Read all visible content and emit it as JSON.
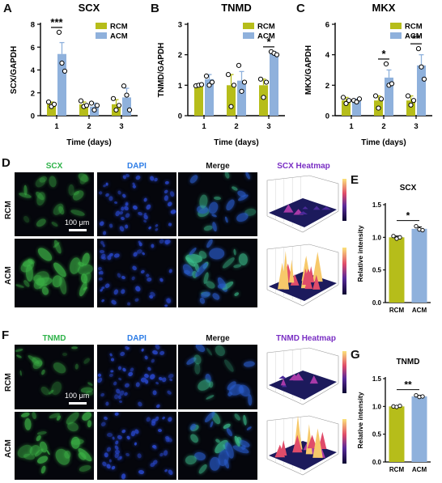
{
  "panels": {
    "A": "A",
    "B": "B",
    "C": "C",
    "D": "D",
    "E": "E",
    "F": "F",
    "G": "G"
  },
  "colors": {
    "RCM": "#b6bd1a",
    "ACM": "#8fb1dc"
  },
  "chart_data": [
    {
      "id": "scx_bar",
      "type": "bar",
      "title": "SCX",
      "ylabel": "SCX/GAPDH",
      "xlabel": "Time (days)",
      "categories": [
        "1",
        "2",
        "3"
      ],
      "ylim": [
        0,
        8
      ],
      "yticks": [
        "0",
        "2",
        "4",
        "6",
        "8"
      ],
      "legend": [
        "RCM",
        "ACM"
      ],
      "series": [
        {
          "name": "RCM",
          "values": [
            1.0,
            1.0,
            1.0
          ],
          "errors": [
            0.2,
            0.2,
            0.4
          ],
          "points": [
            [
              1.2,
              0.8,
              1.0
            ],
            [
              1.3,
              0.8,
              0.9
            ],
            [
              1.5,
              0.5,
              0.9
            ]
          ]
        },
        {
          "name": "ACM",
          "values": [
            5.4,
            0.8,
            1.6
          ],
          "errors": [
            1.0,
            0.3,
            0.8
          ],
          "points": [
            [
              7.3,
              4.6,
              3.9
            ],
            [
              1.1,
              0.5,
              0.9
            ],
            [
              2.6,
              1.8,
              0.5
            ]
          ]
        }
      ],
      "significance": [
        {
          "category": 0,
          "label": "***"
        }
      ]
    },
    {
      "id": "tnmd_bar",
      "type": "bar",
      "title": "TNMD",
      "ylabel": "TNMD/GAPDH",
      "xlabel": "Time (days)",
      "categories": [
        "1",
        "2",
        "3"
      ],
      "ylim": [
        0,
        3
      ],
      "yticks": [
        "0",
        "1",
        "2",
        "3"
      ],
      "legend": [
        "RCM",
        "ACM"
      ],
      "series": [
        {
          "name": "RCM",
          "values": [
            1.0,
            1.0,
            1.0
          ],
          "errors": [
            0.02,
            0.35,
            0.2
          ],
          "points": [
            [
              0.98,
              1.0,
              1.02
            ],
            [
              1.35,
              0.3,
              1.0
            ],
            [
              1.2,
              0.6,
              1.1
            ]
          ]
        },
        {
          "name": "ACM",
          "values": [
            1.2,
            1.15,
            2.05
          ],
          "errors": [
            0.15,
            0.3,
            0.05
          ],
          "points": [
            [
              1.3,
              1.0,
              1.1
            ],
            [
              1.65,
              0.8,
              1.1
            ],
            [
              2.1,
              2.05,
              2.0
            ]
          ]
        }
      ],
      "significance": [
        {
          "category": 2,
          "label": "*"
        }
      ]
    },
    {
      "id": "mkx_bar",
      "type": "bar",
      "title": "MKX",
      "ylabel": "MKX/GAPDH",
      "xlabel": "Time (days)",
      "categories": [
        "1",
        "2",
        "3"
      ],
      "ylim": [
        0,
        6
      ],
      "yticks": [
        "0",
        "2",
        "4",
        "6"
      ],
      "legend": [
        "RCM",
        "ACM"
      ],
      "series": [
        {
          "name": "RCM",
          "values": [
            1.0,
            1.0,
            1.0
          ],
          "errors": [
            0.2,
            0.3,
            0.3
          ],
          "points": [
            [
              1.2,
              0.8,
              1.0
            ],
            [
              1.3,
              0.5,
              1.1
            ],
            [
              1.3,
              0.7,
              1.0
            ]
          ]
        },
        {
          "name": "ACM",
          "values": [
            1.0,
            2.5,
            3.3
          ],
          "errors": [
            0.1,
            0.5,
            0.7
          ],
          "points": [
            [
              1.0,
              0.9,
              1.1
            ],
            [
              3.4,
              2.0,
              2.1
            ],
            [
              4.4,
              3.2,
              2.4
            ]
          ]
        }
      ],
      "significance": [
        {
          "category": 1,
          "label": "*"
        },
        {
          "category": 2,
          "label": "**"
        }
      ]
    },
    {
      "id": "scx_intensity",
      "type": "bar",
      "title": "SCX",
      "ylabel": "Relative intensity",
      "categories": [
        "RCM",
        "ACM"
      ],
      "ylim": [
        0,
        1.5
      ],
      "yticks": [
        "0.0",
        "0.5",
        "1.0",
        "1.5"
      ],
      "values": [
        1.0,
        1.13
      ],
      "errors": [
        0.02,
        0.03
      ],
      "points": [
        [
          1.02,
          0.98,
          1.0
        ],
        [
          1.17,
          1.12,
          1.11
        ]
      ],
      "significance": [
        {
          "from": 0,
          "to": 1,
          "label": "*"
        }
      ]
    },
    {
      "id": "tnmd_intensity",
      "type": "bar",
      "title": "TNMD",
      "ylabel": "Relative intensity",
      "categories": [
        "RCM",
        "ACM"
      ],
      "ylim": [
        0,
        1.5
      ],
      "yticks": [
        "0.0",
        "0.5",
        "1.0",
        "1.5"
      ],
      "values": [
        1.0,
        1.18
      ],
      "errors": [
        0.01,
        0.02
      ],
      "points": [
        [
          1.0,
          0.99,
          1.01
        ],
        [
          1.2,
          1.17,
          1.18
        ]
      ],
      "significance": [
        {
          "from": 0,
          "to": 1,
          "label": "**"
        }
      ]
    }
  ],
  "micro_D": {
    "columns": [
      {
        "label": "SCX",
        "color": "#2fb34a"
      },
      {
        "label": "DAPI",
        "color": "#2e7de6"
      },
      {
        "label": "Merge",
        "color": "#111111"
      },
      {
        "label": "SCX Heatmap",
        "color": "#7a2fc4"
      }
    ],
    "rows": [
      "RCM",
      "ACM"
    ],
    "scale_bar": "100 μm"
  },
  "micro_F": {
    "columns": [
      {
        "label": "TNMD",
        "color": "#2fb34a"
      },
      {
        "label": "DAPI",
        "color": "#2e7de6"
      },
      {
        "label": "Merge",
        "color": "#111111"
      },
      {
        "label": "TNMD Heatmap",
        "color": "#7a2fc4"
      }
    ],
    "rows": [
      "RCM",
      "ACM"
    ],
    "scale_bar": "100 μm"
  }
}
